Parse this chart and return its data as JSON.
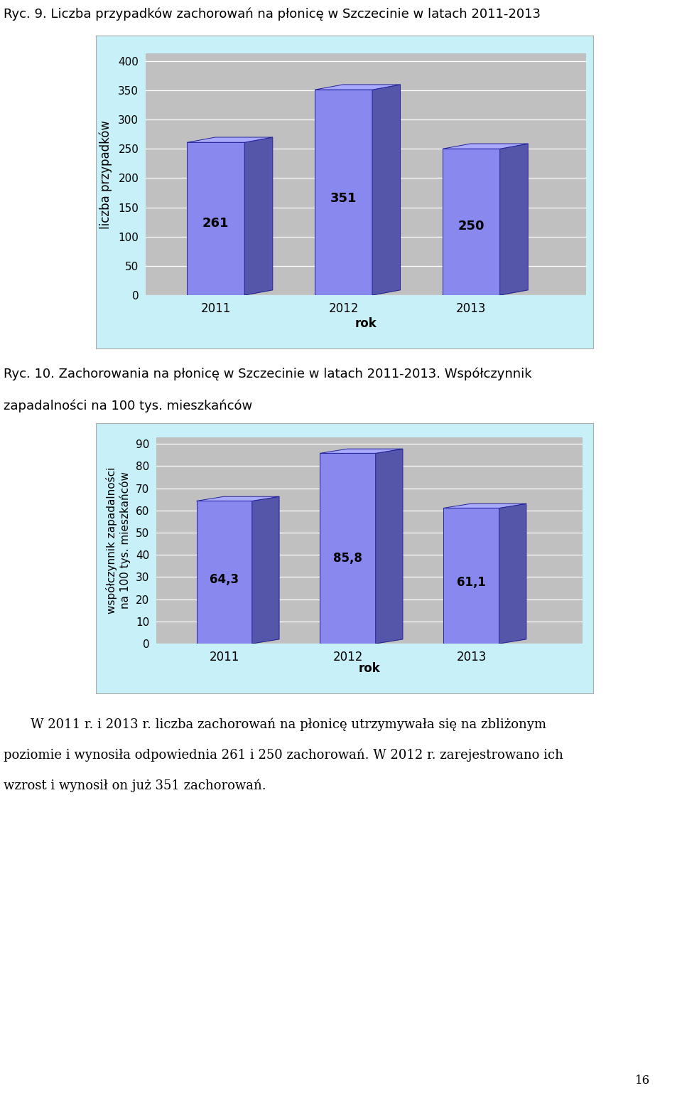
{
  "chart1_title": "Ryc. 9. Liczba przypadków zachorowań na płonicę w Szczecinie w latach 2011-2013",
  "chart1_years": [
    "2011",
    "2012",
    "2013"
  ],
  "chart1_values": [
    261,
    351,
    250
  ],
  "chart1_ylabel": "liczba przypadków",
  "chart1_xlabel": "rok",
  "chart1_ylim": [
    0,
    400
  ],
  "chart1_yticks": [
    0,
    50,
    100,
    150,
    200,
    250,
    300,
    350,
    400
  ],
  "chart2_caption_line1": "Ryc. 10. Zachorowania na płonicę w Szczecinie w latach 2011-2013. Współczynnik",
  "chart2_caption_line2": "zapadalności na 100 tys. mieszkańców",
  "chart2_years": [
    "2011",
    "2012",
    "2013"
  ],
  "chart2_values": [
    64.3,
    85.8,
    61.1
  ],
  "chart2_ylabel_line1": "współczynnik zapadalności",
  "chart2_ylabel_line2": "na 100 tys. mieszkańców",
  "chart2_xlabel": "rok",
  "chart2_ylim": [
    0,
    90
  ],
  "chart2_yticks": [
    0,
    10,
    20,
    30,
    40,
    50,
    60,
    70,
    80,
    90
  ],
  "bar_face_color": "#8888ee",
  "bar_top_color": "#aaaaff",
  "bar_side_color": "#5555aa",
  "bar_floor_color": "#888888",
  "chart_bg_color": "#c8f0f8",
  "plot_bg_color": "#c0c0c0",
  "paragraph_indent": "    ",
  "paragraph_text_line1": "W 2011 r. i 2013 r. liczba zachorowań na płonicę utrzymywała się na zbliżonym",
  "paragraph_text_line2": "poziomie i wynosiła odpowiednia 261 i 250 zachorowań. W 2012 r. zarejestrowano ich",
  "paragraph_text_line3": "wzrost i wynosił on już 351 zachorowań.",
  "page_number": "16"
}
